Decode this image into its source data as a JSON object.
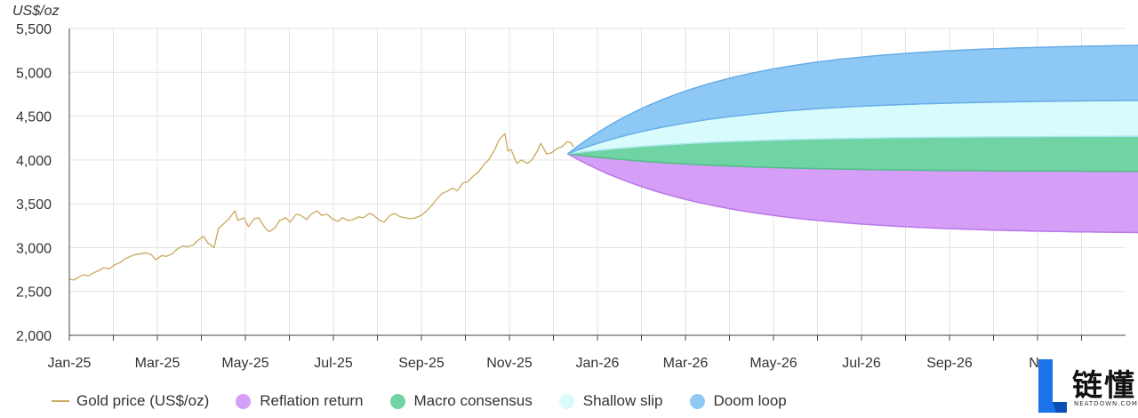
{
  "chart_data": {
    "type": "area",
    "unit_label": "US$/oz",
    "xlabel": "",
    "ylabel": "US$/oz",
    "ylim": [
      2000,
      5500
    ],
    "y_ticks": [
      "2,000",
      "2,500",
      "3,000",
      "3,500",
      "4,000",
      "4,500",
      "5,000",
      "5,500"
    ],
    "x_range": [
      "2025-01-01",
      "2026-12-31"
    ],
    "x_tick_labels": [
      "Jan-25",
      "Mar-25",
      "May-25",
      "Jul-25",
      "Sep-25",
      "Nov-25",
      "Jan-26",
      "Mar-26",
      "May-26",
      "Jul-26",
      "Sep-26",
      "Nov-26"
    ],
    "x_tick_labels_shown": [
      "Jan-25",
      "Mar-25",
      "May-25",
      "Jul-25",
      "Sep-25",
      "Nov-25",
      "Jan-26",
      "Mar-26",
      "May-26",
      "Jul-26",
      "Sep-26",
      "Nc"
    ],
    "grid": true,
    "legend_position": "bottom-left",
    "colors": {
      "gold": "#c9a95c",
      "reflation": "#d59ef7",
      "macro": "#6fd3a3",
      "shallow": "#d8fbfc",
      "doom": "#8ec8f5",
      "grid": "#e3e3e3"
    },
    "gold_price": {
      "name": "Gold price (US$/oz)",
      "points": [
        [
          "2025-01-01",
          2640
        ],
        [
          "2025-01-04",
          2630
        ],
        [
          "2025-01-07",
          2660
        ],
        [
          "2025-01-10",
          2690
        ],
        [
          "2025-01-14",
          2680
        ],
        [
          "2025-01-17",
          2710
        ],
        [
          "2025-01-21",
          2740
        ],
        [
          "2025-01-24",
          2770
        ],
        [
          "2025-01-28",
          2760
        ],
        [
          "2025-01-31",
          2800
        ],
        [
          "2025-02-04",
          2830
        ],
        [
          "2025-02-07",
          2870
        ],
        [
          "2025-02-11",
          2900
        ],
        [
          "2025-02-14",
          2920
        ],
        [
          "2025-02-18",
          2930
        ],
        [
          "2025-02-21",
          2940
        ],
        [
          "2025-02-25",
          2920
        ],
        [
          "2025-02-28",
          2860
        ],
        [
          "2025-03-04",
          2910
        ],
        [
          "2025-03-07",
          2900
        ],
        [
          "2025-03-11",
          2930
        ],
        [
          "2025-03-14",
          2980
        ],
        [
          "2025-03-18",
          3020
        ],
        [
          "2025-03-21",
          3010
        ],
        [
          "2025-03-25",
          3030
        ],
        [
          "2025-03-28",
          3080
        ],
        [
          "2025-04-01",
          3130
        ],
        [
          "2025-04-04",
          3050
        ],
        [
          "2025-04-08",
          3000
        ],
        [
          "2025-04-11",
          3220
        ],
        [
          "2025-04-15",
          3280
        ],
        [
          "2025-04-18",
          3330
        ],
        [
          "2025-04-22",
          3420
        ],
        [
          "2025-04-24",
          3310
        ],
        [
          "2025-04-28",
          3340
        ],
        [
          "2025-05-01",
          3240
        ],
        [
          "2025-05-05",
          3330
        ],
        [
          "2025-05-08",
          3340
        ],
        [
          "2025-05-12",
          3230
        ],
        [
          "2025-05-15",
          3180
        ],
        [
          "2025-05-19",
          3230
        ],
        [
          "2025-05-22",
          3310
        ],
        [
          "2025-05-26",
          3340
        ],
        [
          "2025-05-29",
          3290
        ],
        [
          "2025-06-02",
          3380
        ],
        [
          "2025-06-05",
          3370
        ],
        [
          "2025-06-09",
          3320
        ],
        [
          "2025-06-12",
          3380
        ],
        [
          "2025-06-16",
          3420
        ],
        [
          "2025-06-19",
          3370
        ],
        [
          "2025-06-23",
          3380
        ],
        [
          "2025-06-26",
          3330
        ],
        [
          "2025-06-30",
          3300
        ],
        [
          "2025-07-03",
          3340
        ],
        [
          "2025-07-07",
          3310
        ],
        [
          "2025-07-10",
          3320
        ],
        [
          "2025-07-14",
          3350
        ],
        [
          "2025-07-17",
          3340
        ],
        [
          "2025-07-21",
          3390
        ],
        [
          "2025-07-24",
          3370
        ],
        [
          "2025-07-28",
          3310
        ],
        [
          "2025-07-31",
          3290
        ],
        [
          "2025-08-04",
          3370
        ],
        [
          "2025-08-07",
          3390
        ],
        [
          "2025-08-11",
          3350
        ],
        [
          "2025-08-14",
          3340
        ],
        [
          "2025-08-18",
          3330
        ],
        [
          "2025-08-21",
          3340
        ],
        [
          "2025-08-25",
          3370
        ],
        [
          "2025-08-28",
          3410
        ],
        [
          "2025-09-01",
          3480
        ],
        [
          "2025-09-04",
          3550
        ],
        [
          "2025-09-08",
          3620
        ],
        [
          "2025-09-11",
          3640
        ],
        [
          "2025-09-15",
          3680
        ],
        [
          "2025-09-18",
          3650
        ],
        [
          "2025-09-22",
          3740
        ],
        [
          "2025-09-25",
          3750
        ],
        [
          "2025-09-29",
          3820
        ],
        [
          "2025-10-02",
          3860
        ],
        [
          "2025-10-06",
          3950
        ],
        [
          "2025-10-09",
          4000
        ],
        [
          "2025-10-13",
          4110
        ],
        [
          "2025-10-16",
          4230
        ],
        [
          "2025-10-20",
          4300
        ],
        [
          "2025-10-22",
          4100
        ],
        [
          "2025-10-24",
          4120
        ],
        [
          "2025-10-28",
          3960
        ],
        [
          "2025-10-31",
          4000
        ],
        [
          "2025-11-04",
          3960
        ],
        [
          "2025-11-07",
          4000
        ],
        [
          "2025-11-11",
          4110
        ],
        [
          "2025-11-13",
          4190
        ],
        [
          "2025-11-17",
          4070
        ],
        [
          "2025-11-20",
          4080
        ],
        [
          "2025-11-24",
          4130
        ],
        [
          "2025-11-27",
          4150
        ],
        [
          "2025-12-01",
          4210
        ],
        [
          "2025-12-03",
          4200
        ],
        [
          "2025-12-05",
          4150
        ]
      ]
    },
    "scenarios": {
      "start": [
        "2025-12-01",
        4070
      ],
      "end_date": "2026-12-31",
      "reflation_return": {
        "name": "Reflation return",
        "lower_end": 3170,
        "upper_end": 3870
      },
      "macro_consensus": {
        "name": "Macro consensus",
        "lower_end": 3870,
        "upper_end": 4270
      },
      "shallow_slip": {
        "name": "Shallow slip",
        "lower_end": 4270,
        "upper_end": 4680
      },
      "doom_loop": {
        "name": "Doom loop",
        "lower_end": 4680,
        "upper_end": 5310
      }
    }
  },
  "legend": {
    "gold": "Gold price (US$/oz)",
    "reflation": "Reflation return",
    "macro": "Macro consensus",
    "shallow": "Shallow slip",
    "doom": "Doom loop"
  },
  "logo": {
    "text": "链懂",
    "sub": "NEATDOWN.COM",
    "icon": "l-logo-icon"
  }
}
